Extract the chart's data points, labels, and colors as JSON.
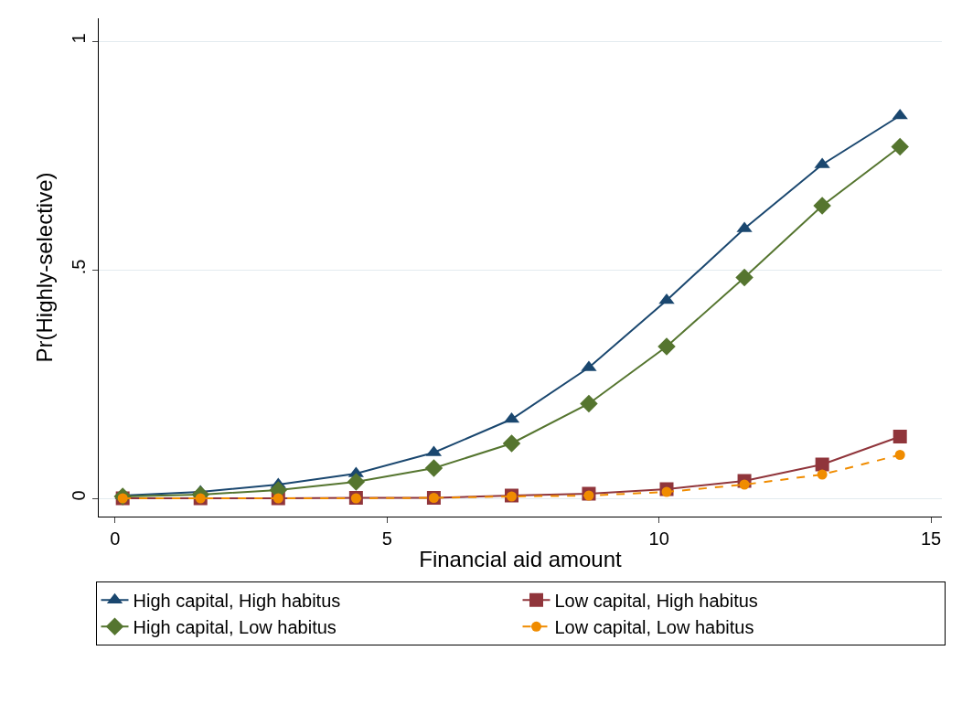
{
  "chart_data": {
    "type": "line",
    "xlabel": "Financial aid amount",
    "ylabel": "Pr(Highly-selective)",
    "x": [
      0.14,
      1.57,
      3.0,
      4.43,
      5.86,
      7.29,
      8.71,
      10.14,
      11.57,
      13.0,
      14.43
    ],
    "series": [
      {
        "name": "High capital, High habitus",
        "color": "#1a476f",
        "marker": "triangle",
        "line_style": "solid",
        "values": [
          0.006,
          0.014,
          0.03,
          0.054,
          0.1,
          0.173,
          0.286,
          0.433,
          0.59,
          0.73,
          0.837
        ]
      },
      {
        "name": "Low capital, High habitus",
        "color": "#90353b",
        "marker": "square",
        "line_style": "solid",
        "values": [
          0.0,
          0.0,
          0.0,
          0.001,
          0.001,
          0.006,
          0.01,
          0.02,
          0.038,
          0.074,
          0.135
        ]
      },
      {
        "name": "High capital, Low habitus",
        "color": "#55752f",
        "marker": "diamond",
        "line_style": "solid",
        "values": [
          0.004,
          0.008,
          0.018,
          0.036,
          0.066,
          0.12,
          0.207,
          0.332,
          0.483,
          0.64,
          0.769
        ]
      },
      {
        "name": "Low capital, Low habitus",
        "color": "#f08c00",
        "marker": "circle",
        "line_style": "dashed",
        "values": [
          0.0,
          0.0,
          0.0,
          0.0,
          0.001,
          0.004,
          0.006,
          0.014,
          0.03,
          0.052,
          0.095
        ]
      }
    ],
    "xlim": [
      -0.3,
      15.2
    ],
    "xticks": [
      0,
      5,
      10,
      15
    ],
    "ylim": [
      -0.04,
      1.05
    ],
    "yticks": [
      0,
      {
        "value": 0.5,
        "label": ".5"
      },
      1
    ],
    "grid": "y",
    "legend": "bottom"
  }
}
